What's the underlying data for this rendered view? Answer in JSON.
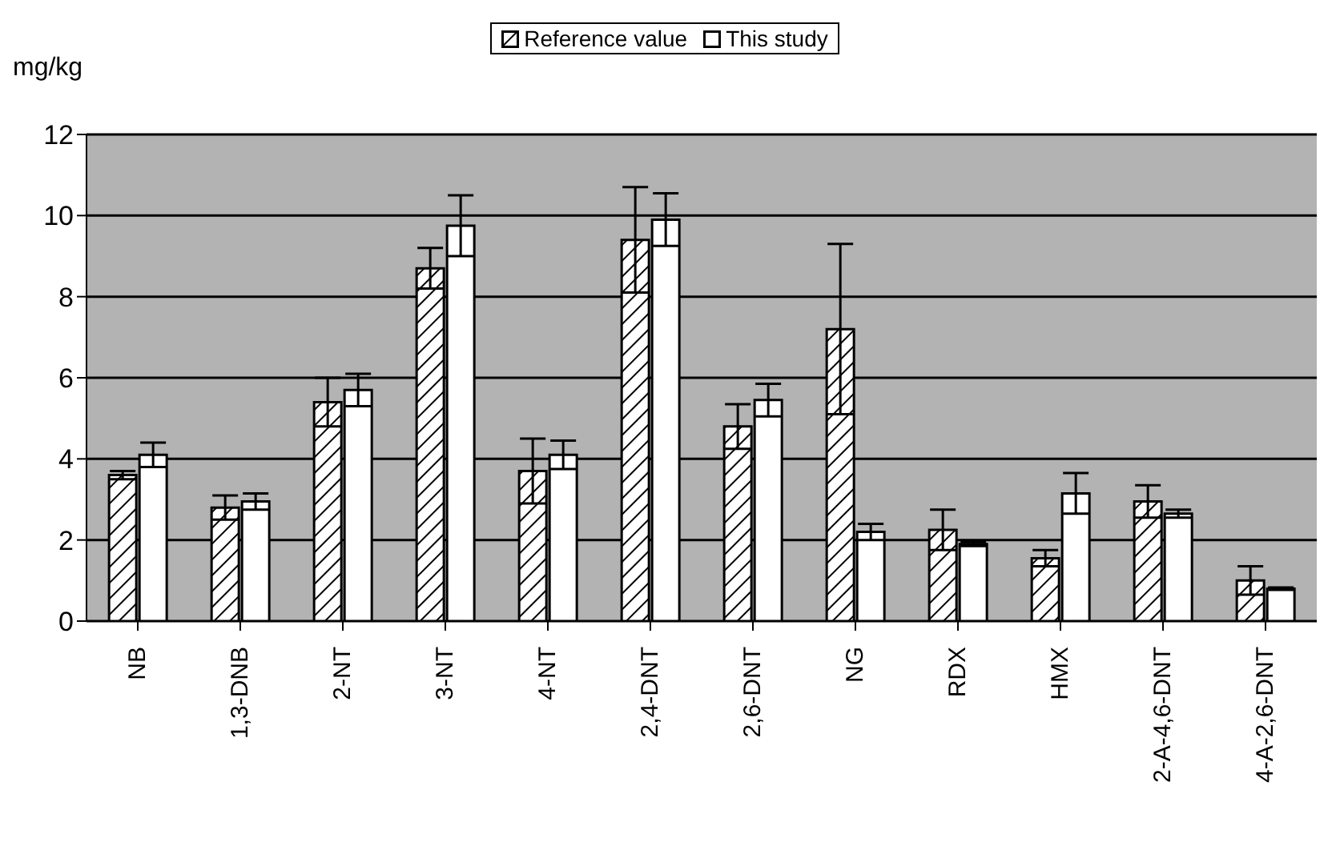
{
  "chart_data": {
    "type": "bar",
    "ylabel": "mg/kg",
    "categories": [
      "NB",
      "1,3-DNB",
      "2-NT",
      "3-NT",
      "4-NT",
      "2,4-DNT",
      "2,6-DNT",
      "NG",
      "RDX",
      "HMX",
      "2-A-4,6-DNT",
      "4-A-2,6-DNT"
    ],
    "series": [
      {
        "name": "Reference value",
        "color": "#000000",
        "values": [
          3.6,
          2.8,
          5.4,
          8.7,
          3.7,
          9.4,
          4.8,
          7.2,
          2.25,
          1.55,
          2.95,
          1.0
        ],
        "errors": [
          0.1,
          0.3,
          0.6,
          0.5,
          0.8,
          1.3,
          0.55,
          2.1,
          0.5,
          0.2,
          0.4,
          0.35
        ]
      },
      {
        "name": "This study",
        "color": "#ffffff",
        "values": [
          4.1,
          2.95,
          5.7,
          9.75,
          4.1,
          9.9,
          5.45,
          2.2,
          1.9,
          3.15,
          2.65,
          0.8
        ],
        "errors": [
          0.3,
          0.2,
          0.4,
          0.75,
          0.35,
          0.65,
          0.4,
          0.2,
          0.05,
          0.5,
          0.1,
          0.03
        ]
      }
    ],
    "ylim": [
      0,
      12
    ],
    "yticks": [
      0,
      2,
      4,
      6,
      8,
      10,
      12
    ],
    "grid": "y",
    "legend": "top"
  }
}
